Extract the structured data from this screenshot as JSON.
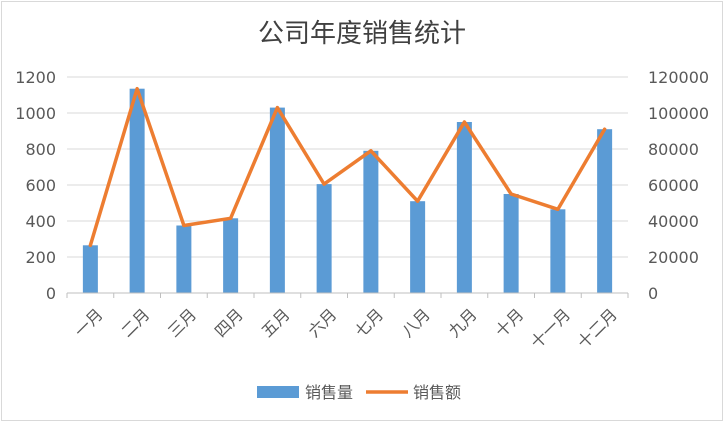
{
  "chart_data": {
    "type": "bar",
    "title": "公司年度销售统计",
    "categories": [
      "一月",
      "二月",
      "三月",
      "四月",
      "五月",
      "六月",
      "七月",
      "八月",
      "九月",
      "十月",
      "十一月",
      "十二月"
    ],
    "series": [
      {
        "name": "销售量",
        "type": "bar",
        "axis": "left",
        "color": "#5b9bd5",
        "values": [
          265,
          1135,
          375,
          415,
          1030,
          605,
          790,
          510,
          950,
          550,
          465,
          910
        ]
      },
      {
        "name": "销售额",
        "type": "line",
        "axis": "right",
        "color": "#ed7d31",
        "values": [
          26500,
          113500,
          37500,
          41500,
          103000,
          60500,
          79000,
          51000,
          95000,
          55000,
          46500,
          91000
        ]
      }
    ],
    "y_left": {
      "min": 0,
      "max": 1200,
      "ticks": [
        0,
        200,
        400,
        600,
        800,
        1000,
        1200
      ]
    },
    "y_right": {
      "min": 0,
      "max": 120000,
      "ticks": [
        0,
        20000,
        40000,
        60000,
        80000,
        100000,
        120000
      ]
    },
    "grid": true,
    "legend_position": "bottom"
  }
}
